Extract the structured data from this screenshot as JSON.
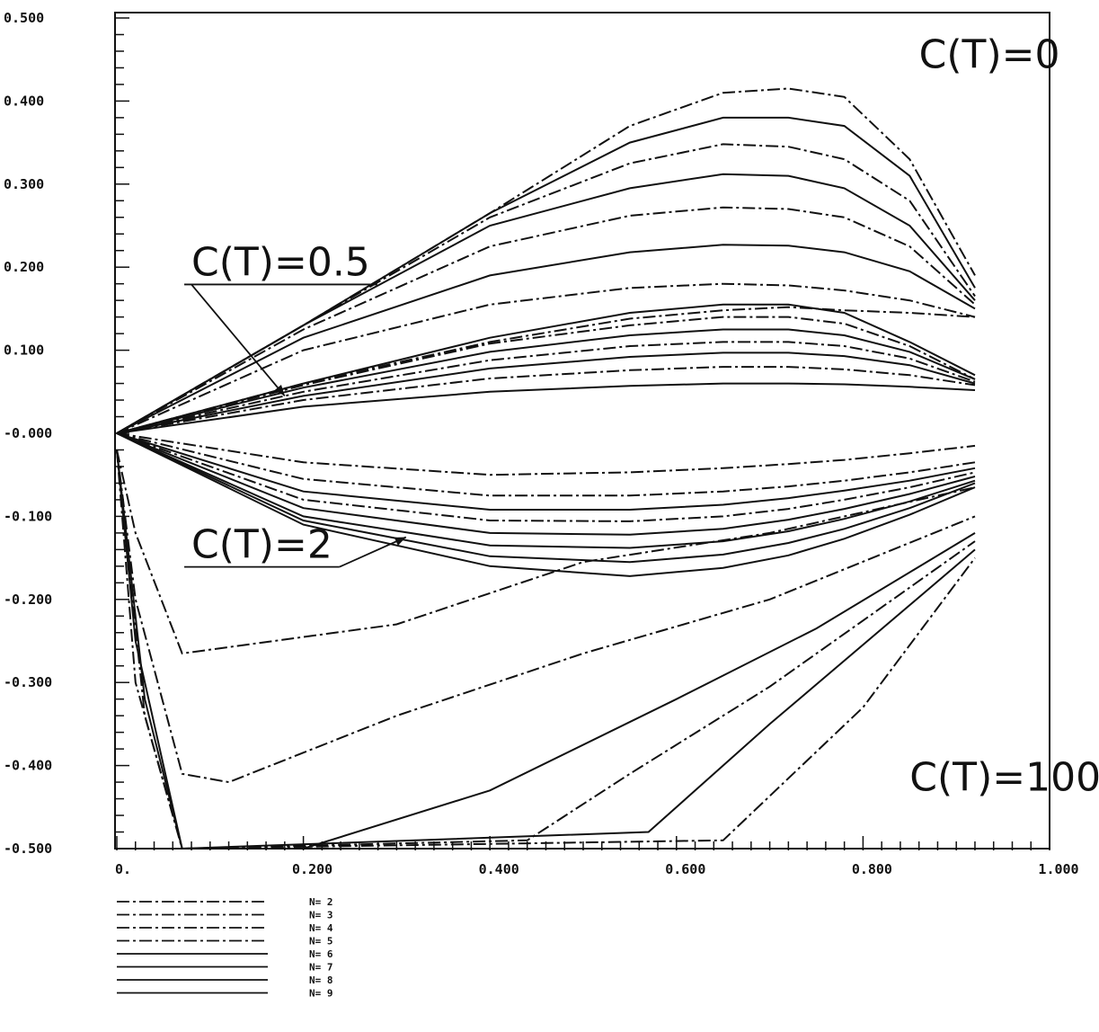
{
  "chart_data": {
    "type": "line",
    "title": "",
    "xlabel": "",
    "ylabel": "",
    "xlim": [
      0,
      1.0
    ],
    "ylim": [
      -0.5,
      0.5
    ],
    "grid": false,
    "legend_position": "bottom-left",
    "x_tick_labels": [
      "0.",
      "0.200",
      "0.400",
      "0.600",
      "0.800",
      "1.000"
    ],
    "x_tick_values": [
      0,
      0.2,
      0.4,
      0.6,
      0.8,
      1.0
    ],
    "y_tick_labels": [
      "0.500",
      "0.400",
      "0.300",
      "0.200",
      "0.100",
      "-0.000",
      "-0.100",
      "-0.200",
      "-0.300",
      "-0.400",
      "-0.500"
    ],
    "y_tick_values": [
      0.5,
      0.4,
      0.3,
      0.2,
      0.1,
      0,
      -0.1,
      -0.2,
      -0.3,
      -0.4,
      -0.5
    ],
    "annotations": [
      {
        "text": "C(T)=0",
        "x": 0.86,
        "y": 0.44
      },
      {
        "text": "C(T)=0.5",
        "x": 0.08,
        "y": 0.19,
        "arrow_to": [
          0.18,
          0.045
        ]
      },
      {
        "text": "C(T)=2",
        "x": 0.08,
        "y": -0.15,
        "arrow_to": [
          0.31,
          -0.125
        ]
      },
      {
        "text": "C(T)=100",
        "x": 0.85,
        "y": -0.43
      }
    ],
    "legend": [
      "N= 2",
      "N= 3",
      "N= 4",
      "N= 5",
      "N= 6",
      "N= 7",
      "N= 8",
      "N= 9"
    ],
    "series": [
      {
        "group": "C(T)=0",
        "style": "dashdot",
        "x": [
          0,
          0.2,
          0.4,
          0.55,
          0.65,
          0.72,
          0.78,
          0.85,
          0.92
        ],
        "y": [
          0,
          0.13,
          0.265,
          0.37,
          0.41,
          0.415,
          0.405,
          0.33,
          0.19
        ]
      },
      {
        "group": "C(T)=0",
        "style": "solid",
        "x": [
          0,
          0.2,
          0.4,
          0.55,
          0.65,
          0.72,
          0.78,
          0.85,
          0.92
        ],
        "y": [
          0,
          0.13,
          0.265,
          0.35,
          0.38,
          0.38,
          0.37,
          0.31,
          0.175
        ]
      },
      {
        "group": "C(T)=0",
        "style": "dashdot",
        "x": [
          0,
          0.2,
          0.4,
          0.55,
          0.65,
          0.72,
          0.78,
          0.85,
          0.92
        ],
        "y": [
          0,
          0.13,
          0.26,
          0.325,
          0.348,
          0.345,
          0.33,
          0.28,
          0.165
        ]
      },
      {
        "group": "C(T)=0",
        "style": "solid",
        "x": [
          0,
          0.2,
          0.4,
          0.55,
          0.65,
          0.72,
          0.78,
          0.85,
          0.92
        ],
        "y": [
          0,
          0.13,
          0.25,
          0.295,
          0.312,
          0.31,
          0.295,
          0.25,
          0.16
        ]
      },
      {
        "group": "C(T)=0",
        "style": "dashdot",
        "x": [
          0,
          0.2,
          0.4,
          0.55,
          0.65,
          0.72,
          0.78,
          0.85,
          0.92
        ],
        "y": [
          0,
          0.125,
          0.225,
          0.262,
          0.272,
          0.27,
          0.26,
          0.225,
          0.155
        ]
      },
      {
        "group": "C(T)=0",
        "style": "solid",
        "x": [
          0,
          0.2,
          0.4,
          0.55,
          0.65,
          0.72,
          0.78,
          0.85,
          0.92
        ],
        "y": [
          0,
          0.115,
          0.19,
          0.218,
          0.227,
          0.226,
          0.218,
          0.195,
          0.15
        ]
      },
      {
        "group": "C(T)=0",
        "style": "dashdot",
        "x": [
          0,
          0.2,
          0.4,
          0.55,
          0.65,
          0.72,
          0.78,
          0.85,
          0.92
        ],
        "y": [
          0,
          0.1,
          0.155,
          0.175,
          0.18,
          0.178,
          0.172,
          0.16,
          0.14
        ]
      },
      {
        "group": "C(T)=0.5",
        "style": "dashdot",
        "x": [
          0,
          0.2,
          0.4,
          0.55,
          0.65,
          0.72,
          0.78,
          0.85,
          0.92
        ],
        "y": [
          0,
          0.06,
          0.11,
          0.138,
          0.148,
          0.152,
          0.148,
          0.145,
          0.14
        ]
      },
      {
        "group": "C(T)=0.5",
        "style": "solid",
        "x": [
          0,
          0.2,
          0.4,
          0.55,
          0.65,
          0.72,
          0.78,
          0.85,
          0.92
        ],
        "y": [
          0,
          0.06,
          0.115,
          0.145,
          0.155,
          0.155,
          0.145,
          0.11,
          0.07
        ]
      },
      {
        "group": "C(T)=0.5",
        "style": "dashdot",
        "x": [
          0,
          0.2,
          0.4,
          0.55,
          0.65,
          0.72,
          0.78,
          0.85,
          0.92
        ],
        "y": [
          0,
          0.058,
          0.108,
          0.13,
          0.14,
          0.14,
          0.132,
          0.105,
          0.065
        ]
      },
      {
        "group": "C(T)=0.5",
        "style": "solid",
        "x": [
          0,
          0.2,
          0.4,
          0.55,
          0.65,
          0.72,
          0.78,
          0.85,
          0.92
        ],
        "y": [
          0,
          0.055,
          0.098,
          0.118,
          0.125,
          0.125,
          0.118,
          0.098,
          0.065
        ]
      },
      {
        "group": "C(T)=0.5",
        "style": "dashdot",
        "x": [
          0,
          0.2,
          0.4,
          0.55,
          0.65,
          0.72,
          0.78,
          0.85,
          0.92
        ],
        "y": [
          0,
          0.05,
          0.088,
          0.105,
          0.11,
          0.11,
          0.105,
          0.09,
          0.062
        ]
      },
      {
        "group": "C(T)=0.5",
        "style": "solid",
        "x": [
          0,
          0.2,
          0.4,
          0.55,
          0.65,
          0.72,
          0.78,
          0.85,
          0.92
        ],
        "y": [
          0,
          0.045,
          0.078,
          0.092,
          0.097,
          0.097,
          0.093,
          0.082,
          0.06
        ]
      },
      {
        "group": "C(T)=0.5",
        "style": "dashdot",
        "x": [
          0,
          0.2,
          0.4,
          0.55,
          0.65,
          0.72,
          0.78,
          0.85,
          0.92
        ],
        "y": [
          0,
          0.04,
          0.066,
          0.076,
          0.08,
          0.08,
          0.077,
          0.07,
          0.058
        ]
      },
      {
        "group": "C(T)=0.5",
        "style": "solid",
        "x": [
          0,
          0.2,
          0.4,
          0.55,
          0.65,
          0.72,
          0.78,
          0.85,
          0.92
        ],
        "y": [
          0,
          0.032,
          0.05,
          0.057,
          0.06,
          0.06,
          0.059,
          0.056,
          0.052
        ]
      },
      {
        "group": "C(T)=2",
        "style": "dashdot",
        "x": [
          0,
          0.2,
          0.4,
          0.55,
          0.65,
          0.72,
          0.78,
          0.85,
          0.92
        ],
        "y": [
          0,
          -0.035,
          -0.05,
          -0.047,
          -0.042,
          -0.037,
          -0.032,
          -0.024,
          -0.015
        ]
      },
      {
        "group": "C(T)=2",
        "style": "dashdot",
        "x": [
          0,
          0.2,
          0.4,
          0.55,
          0.65,
          0.72,
          0.78,
          0.85,
          0.92
        ],
        "y": [
          0,
          -0.055,
          -0.075,
          -0.075,
          -0.07,
          -0.064,
          -0.057,
          -0.047,
          -0.035
        ]
      },
      {
        "group": "C(T)=2",
        "style": "solid",
        "x": [
          0,
          0.2,
          0.4,
          0.55,
          0.65,
          0.72,
          0.78,
          0.85,
          0.92
        ],
        "y": [
          0,
          -0.07,
          -0.092,
          -0.092,
          -0.086,
          -0.078,
          -0.069,
          -0.057,
          -0.042
        ]
      },
      {
        "group": "C(T)=2",
        "style": "dashdot",
        "x": [
          0,
          0.2,
          0.4,
          0.55,
          0.65,
          0.72,
          0.78,
          0.85,
          0.92
        ],
        "y": [
          0,
          -0.08,
          -0.105,
          -0.106,
          -0.1,
          -0.091,
          -0.08,
          -0.065,
          -0.047
        ]
      },
      {
        "group": "C(T)=2",
        "style": "solid",
        "x": [
          0,
          0.2,
          0.4,
          0.55,
          0.65,
          0.72,
          0.78,
          0.85,
          0.92
        ],
        "y": [
          0,
          -0.09,
          -0.12,
          -0.122,
          -0.115,
          -0.104,
          -0.091,
          -0.073,
          -0.052
        ]
      },
      {
        "group": "C(T)=2",
        "style": "solid",
        "x": [
          0,
          0.2,
          0.4,
          0.55,
          0.65,
          0.72,
          0.78,
          0.85,
          0.92
        ],
        "y": [
          0,
          -0.1,
          -0.135,
          -0.138,
          -0.13,
          -0.118,
          -0.103,
          -0.082,
          -0.057
        ]
      },
      {
        "group": "C(T)=2",
        "style": "solid",
        "x": [
          0,
          0.2,
          0.4,
          0.55,
          0.65,
          0.72,
          0.78,
          0.85,
          0.92
        ],
        "y": [
          0,
          -0.105,
          -0.148,
          -0.155,
          -0.146,
          -0.132,
          -0.115,
          -0.09,
          -0.06
        ]
      },
      {
        "group": "C(T)=2",
        "style": "solid",
        "x": [
          0,
          0.2,
          0.4,
          0.55,
          0.65,
          0.72,
          0.78,
          0.85,
          0.92
        ],
        "y": [
          0,
          -0.11,
          -0.16,
          -0.172,
          -0.162,
          -0.147,
          -0.127,
          -0.098,
          -0.065
        ]
      },
      {
        "group": "C(T)=100",
        "style": "dashdot",
        "x": [
          0,
          0.02,
          0.07,
          0.3,
          0.5,
          0.7,
          0.92
        ],
        "y": [
          -0.02,
          -0.12,
          -0.265,
          -0.23,
          -0.155,
          -0.12,
          -0.065
        ]
      },
      {
        "group": "C(T)=100",
        "style": "dashdot",
        "x": [
          0,
          0.02,
          0.07,
          0.12,
          0.3,
          0.5,
          0.7,
          0.92
        ],
        "y": [
          -0.02,
          -0.2,
          -0.41,
          -0.42,
          -0.34,
          -0.265,
          -0.2,
          -0.1
        ]
      },
      {
        "group": "C(T)=100",
        "style": "solid",
        "x": [
          0,
          0.02,
          0.07,
          0.2,
          0.4,
          0.6,
          0.75,
          0.92
        ],
        "y": [
          -0.02,
          -0.25,
          -0.5,
          -0.5,
          -0.43,
          -0.32,
          -0.235,
          -0.12
        ]
      },
      {
        "group": "C(T)=100",
        "style": "dashdot",
        "x": [
          0,
          0.02,
          0.07,
          0.44,
          0.55,
          0.7,
          0.92
        ],
        "y": [
          -0.02,
          -0.3,
          -0.5,
          -0.49,
          -0.41,
          -0.305,
          -0.13
        ]
      },
      {
        "group": "C(T)=100",
        "style": "solid",
        "x": [
          0,
          0.03,
          0.07,
          0.57,
          0.7,
          0.92
        ],
        "y": [
          -0.02,
          -0.32,
          -0.5,
          -0.48,
          -0.35,
          -0.14
        ]
      },
      {
        "group": "C(T)=100",
        "style": "dashdot",
        "x": [
          0,
          0.03,
          0.07,
          0.65,
          0.8,
          0.92
        ],
        "y": [
          -0.02,
          -0.34,
          -0.5,
          -0.49,
          -0.33,
          -0.15
        ]
      }
    ]
  }
}
